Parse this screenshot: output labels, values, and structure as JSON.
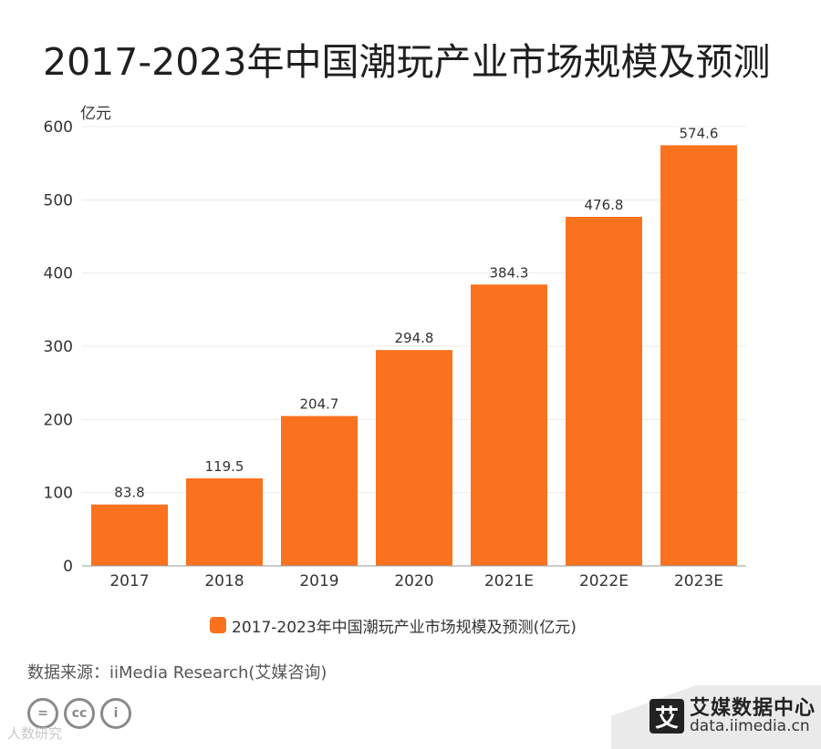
{
  "title": "2017-2023年中国潮玩产业市场规模及预测",
  "chart_data": {
    "type": "bar",
    "ylabel": "亿元",
    "ylim": [
      0,
      600
    ],
    "yticks": [
      0,
      100,
      200,
      300,
      400,
      500,
      600
    ],
    "grid": true,
    "categories": [
      "2017",
      "2018",
      "2019",
      "2020",
      "2021E",
      "2022E",
      "2023E"
    ],
    "series": [
      {
        "name": "2017-2023年中国潮玩产业市场规模及预测(亿元)",
        "values": [
          83.8,
          119.5,
          204.7,
          294.8,
          384.3,
          476.8,
          574.6
        ],
        "labels": [
          "83.8",
          "119.5",
          "204.7",
          "294.8",
          "384.3",
          "476.8",
          "574.6"
        ],
        "color": "#fa721e"
      }
    ],
    "legend": "bottom-center"
  },
  "source": "数据来源：iiMedia Research(艾媒咨询)",
  "watermark": "人数研究",
  "brand": {
    "logo": "艾",
    "name": "艾媒数据中心",
    "url": "data.iimedia.cn"
  },
  "footer_icons": [
    "equals-circle-icon",
    "cc-icon",
    "person-icon"
  ]
}
